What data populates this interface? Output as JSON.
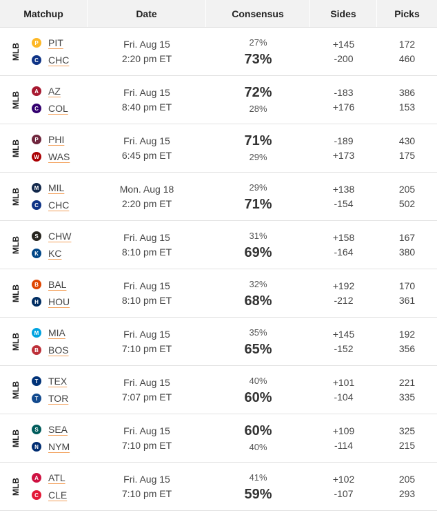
{
  "headers": {
    "matchup": "Matchup",
    "date": "Date",
    "consensus": "Consensus",
    "sides": "Sides",
    "picks": "Picks"
  },
  "rows": [
    {
      "league": "MLB",
      "away": {
        "abbr": "PIT",
        "color": "#FDB827",
        "glyph": "P"
      },
      "home": {
        "abbr": "CHC",
        "color": "#0E3386",
        "glyph": "C"
      },
      "date": "Fri. Aug 15",
      "time": "2:20 pm ET",
      "away_pct": "27%",
      "home_pct": "73%",
      "away_side": "+145",
      "home_side": "-200",
      "away_picks": "172",
      "home_picks": "460",
      "leader": "home"
    },
    {
      "league": "MLB",
      "away": {
        "abbr": "AZ",
        "color": "#A71930",
        "glyph": "A"
      },
      "home": {
        "abbr": "COL",
        "color": "#33006F",
        "glyph": "C"
      },
      "date": "Fri. Aug 15",
      "time": "8:40 pm ET",
      "away_pct": "72%",
      "home_pct": "28%",
      "away_side": "-183",
      "home_side": "+176",
      "away_picks": "386",
      "home_picks": "153",
      "leader": "away"
    },
    {
      "league": "MLB",
      "away": {
        "abbr": "PHI",
        "color": "#6F263D",
        "glyph": "P"
      },
      "home": {
        "abbr": "WAS",
        "color": "#AB0003",
        "glyph": "W"
      },
      "date": "Fri. Aug 15",
      "time": "6:45 pm ET",
      "away_pct": "71%",
      "home_pct": "29%",
      "away_side": "-189",
      "home_side": "+173",
      "away_picks": "430",
      "home_picks": "175",
      "leader": "away"
    },
    {
      "league": "MLB",
      "away": {
        "abbr": "MIL",
        "color": "#12284B",
        "glyph": "M"
      },
      "home": {
        "abbr": "CHC",
        "color": "#0E3386",
        "glyph": "C"
      },
      "date": "Mon. Aug 18",
      "time": "2:20 pm ET",
      "away_pct": "29%",
      "home_pct": "71%",
      "away_side": "+138",
      "home_side": "-154",
      "away_picks": "205",
      "home_picks": "502",
      "leader": "home"
    },
    {
      "league": "MLB",
      "away": {
        "abbr": "CHW",
        "color": "#27251F",
        "glyph": "S"
      },
      "home": {
        "abbr": "KC",
        "color": "#004687",
        "glyph": "K"
      },
      "date": "Fri. Aug 15",
      "time": "8:10 pm ET",
      "away_pct": "31%",
      "home_pct": "69%",
      "away_side": "+158",
      "home_side": "-164",
      "away_picks": "167",
      "home_picks": "380",
      "leader": "home"
    },
    {
      "league": "MLB",
      "away": {
        "abbr": "BAL",
        "color": "#DF4601",
        "glyph": "B"
      },
      "home": {
        "abbr": "HOU",
        "color": "#002D62",
        "glyph": "H"
      },
      "date": "Fri. Aug 15",
      "time": "8:10 pm ET",
      "away_pct": "32%",
      "home_pct": "68%",
      "away_side": "+192",
      "home_side": "-212",
      "away_picks": "170",
      "home_picks": "361",
      "leader": "home"
    },
    {
      "league": "MLB",
      "away": {
        "abbr": "MIA",
        "color": "#00A3E0",
        "glyph": "M"
      },
      "home": {
        "abbr": "BOS",
        "color": "#BD3039",
        "glyph": "B"
      },
      "date": "Fri. Aug 15",
      "time": "7:10 pm ET",
      "away_pct": "35%",
      "home_pct": "65%",
      "away_side": "+145",
      "home_side": "-152",
      "away_picks": "192",
      "home_picks": "356",
      "leader": "home"
    },
    {
      "league": "MLB",
      "away": {
        "abbr": "TEX",
        "color": "#003278",
        "glyph": "T"
      },
      "home": {
        "abbr": "TOR",
        "color": "#134A8E",
        "glyph": "T"
      },
      "date": "Fri. Aug 15",
      "time": "7:07 pm ET",
      "away_pct": "40%",
      "home_pct": "60%",
      "away_side": "+101",
      "home_side": "-104",
      "away_picks": "221",
      "home_picks": "335",
      "leader": "home"
    },
    {
      "league": "MLB",
      "away": {
        "abbr": "SEA",
        "color": "#005C5C",
        "glyph": "S"
      },
      "home": {
        "abbr": "NYM",
        "color": "#002D72",
        "glyph": "N"
      },
      "date": "Fri. Aug 15",
      "time": "7:10 pm ET",
      "away_pct": "60%",
      "home_pct": "40%",
      "away_side": "+109",
      "home_side": "-114",
      "away_picks": "325",
      "home_picks": "215",
      "leader": "away"
    },
    {
      "league": "MLB",
      "away": {
        "abbr": "ATL",
        "color": "#CE1141",
        "glyph": "A"
      },
      "home": {
        "abbr": "CLE",
        "color": "#E31937",
        "glyph": "C"
      },
      "date": "Fri. Aug 15",
      "time": "7:10 pm ET",
      "away_pct": "41%",
      "home_pct": "59%",
      "away_side": "+102",
      "home_side": "-107",
      "away_picks": "205",
      "home_picks": "293",
      "leader": "home"
    }
  ]
}
